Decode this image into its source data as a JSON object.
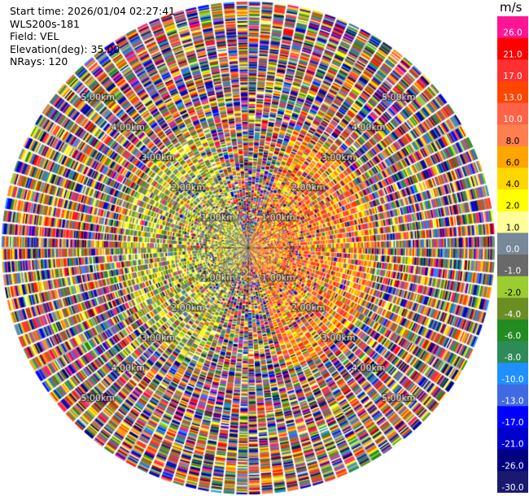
{
  "header": {
    "start_time": "Start time: 2026/01/04 02:27:41",
    "instrument": "WLS200s-181",
    "field": "Field: VEL",
    "elevation": "Elevation(deg): 35.00",
    "nrays": "NRays: 120"
  },
  "chart_data": {
    "type": "heatmap",
    "projection": "polar-ppi",
    "n_rays": 120,
    "range_rings_km": [
      1.0,
      2.0,
      3.0,
      4.0,
      5.0
    ],
    "ring_labels": [
      "1.00km",
      "2.00km",
      "3.00km",
      "4.00km",
      "5.00km"
    ],
    "max_range_km": 5.8,
    "units": "m/s",
    "colorbar": {
      "ticks": [
        "26.0",
        "21.0",
        "17.0",
        "13.0",
        "10.0",
        "8.0",
        "6.0",
        "4.0",
        "2.0",
        "1.0",
        "0.0",
        "-1.0",
        "-2.0",
        "-4.0",
        "-6.0",
        "-8.0",
        "-10.0",
        "-13.0",
        "-17.0",
        "-21.0",
        "-26.0",
        "-30.0"
      ],
      "colors": [
        "#ff1493",
        "#ff0000",
        "#ff3030",
        "#ff4500",
        "#ff6347",
        "#ff7f50",
        "#ffa500",
        "#ffd700",
        "#ffff00",
        "#ffff99",
        "#778899",
        "#696969",
        "#9acd32",
        "#6b8e23",
        "#228b22",
        "#2e8b57",
        "#1e90ff",
        "#4169e1",
        "#0000ff",
        "#0000cd",
        "#000080",
        "#191970"
      ]
    }
  }
}
